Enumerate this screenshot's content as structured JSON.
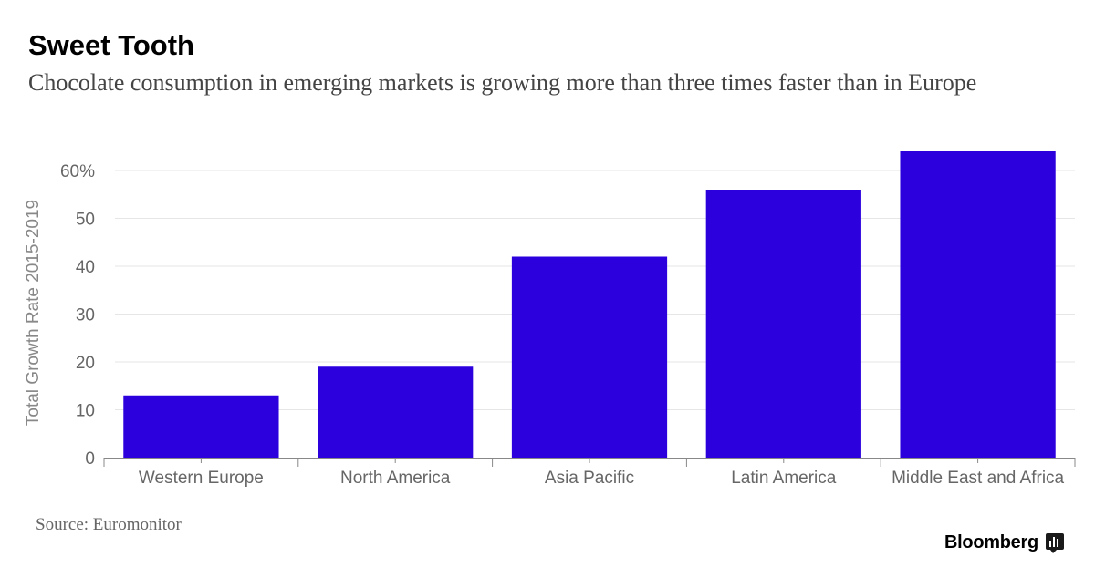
{
  "header": {
    "title": "Sweet Tooth",
    "subtitle": "Chocolate consumption in emerging markets is growing more than three times faster than in Europe"
  },
  "footer": {
    "source": "Source: Euromonitor",
    "brand": "Bloomberg"
  },
  "colors": {
    "bar": "#2b00dd",
    "grid": "#e6e6e6",
    "axis": "#888888",
    "tick_text": "#666666"
  },
  "chart_data": {
    "type": "bar",
    "title": "Sweet Tooth",
    "ylabel": "Total Growth Rate 2015-2019",
    "xlabel": "",
    "categories": [
      "Western Europe",
      "North America",
      "Asia Pacific",
      "Latin America",
      "Middle East and Africa"
    ],
    "values": [
      13,
      19,
      42,
      56,
      64
    ],
    "ylim": [
      0,
      64
    ],
    "yticks": [
      0,
      10,
      20,
      30,
      40,
      50,
      60
    ],
    "ytick_labels": [
      "0",
      "10",
      "20",
      "30",
      "40",
      "50",
      "60%"
    ],
    "grid": true,
    "legend": "none"
  }
}
